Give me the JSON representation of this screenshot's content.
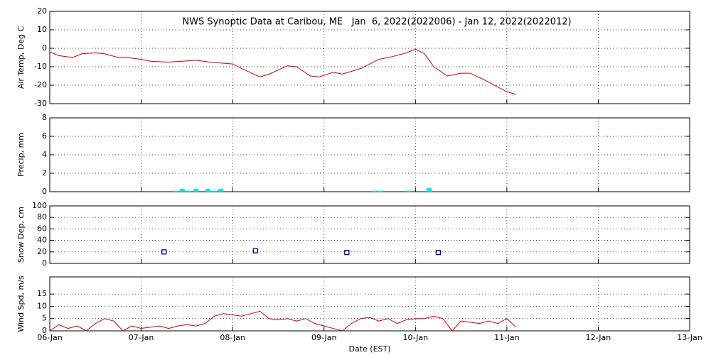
{
  "chart_data": [
    {
      "type": "line",
      "title": "NWS Synoptic Data at Caribou, ME   Jan  6, 2022(2022006) - Jan 12, 2022(2022012)",
      "ylabel": "Air Temp, Deg C",
      "xlim": [
        0,
        7
      ],
      "xticks": [
        0,
        1,
        2,
        3,
        4,
        5,
        6,
        7
      ],
      "ylim": [
        -30,
        20
      ],
      "yticks": [
        -30,
        -20,
        -10,
        0,
        10,
        20
      ],
      "grid": true,
      "series": [
        {
          "color": "#cc0000",
          "x": [
            0,
            0.1,
            0.25,
            0.35,
            0.5,
            0.6,
            0.75,
            0.85,
            1.0,
            1.1,
            1.3,
            1.45,
            1.6,
            1.75,
            2.0,
            2.1,
            2.3,
            2.4,
            2.6,
            2.7,
            2.85,
            2.95,
            3.1,
            3.2,
            3.4,
            3.6,
            3.75,
            3.9,
            4.0,
            4.1,
            4.2,
            4.35,
            4.5,
            4.6,
            4.75,
            4.9,
            5.0,
            5.1
          ],
          "values": [
            -2,
            -4,
            -5,
            -3,
            -2.5,
            -3,
            -5,
            -5,
            -6,
            -7,
            -7.5,
            -7,
            -6.5,
            -7.5,
            -8.5,
            -11,
            -15.5,
            -14,
            -9.5,
            -10,
            -15,
            -15.5,
            -13,
            -14,
            -11,
            -6,
            -4.5,
            -2.5,
            -0.5,
            -3,
            -10,
            -15,
            -13.5,
            -13.5,
            -17,
            -21,
            -23.5,
            -25
          ]
        }
      ]
    },
    {
      "type": "bar",
      "ylabel": "Precip, mm",
      "xlim": [
        0,
        7
      ],
      "xticks": [
        0,
        1,
        2,
        3,
        4,
        5,
        6,
        7
      ],
      "ylim": [
        0,
        8
      ],
      "yticks": [
        0,
        2,
        4,
        6,
        8
      ],
      "grid": true,
      "series": [
        {
          "color": "#00e5ee",
          "x": [
            1.38,
            1.45,
            1.52,
            1.6,
            1.73,
            1.8,
            1.87,
            3.55,
            3.62,
            3.93,
            4.15
          ],
          "values": [
            0.1,
            0.3,
            0.1,
            0.3,
            0.3,
            0.1,
            0.3,
            0.1,
            0.1,
            0.1,
            0.4
          ]
        }
      ]
    },
    {
      "type": "scatter",
      "ylabel": "Snow Dep, cm",
      "xlim": [
        0,
        7
      ],
      "xticks": [
        0,
        1,
        2,
        3,
        4,
        5,
        6,
        7
      ],
      "ylim": [
        0,
        100
      ],
      "yticks": [
        0,
        20,
        40,
        60,
        80,
        100
      ],
      "grid": true,
      "series": [
        {
          "color": "#000099",
          "x": [
            1.25,
            2.25,
            3.25,
            4.25
          ],
          "values": [
            20,
            22,
            19,
            19
          ]
        }
      ]
    },
    {
      "type": "line",
      "ylabel": "Wind Spd, m/s",
      "xlabel": "Date (EST)",
      "xlim": [
        0,
        7
      ],
      "xticks": [
        {
          "value": 0,
          "label": "06-Jan"
        },
        {
          "value": 1,
          "label": "07-Jan"
        },
        {
          "value": 2,
          "label": "08-Jan"
        },
        {
          "value": 3,
          "label": "09-Jan"
        },
        {
          "value": 4,
          "label": "10-Jan"
        },
        {
          "value": 5,
          "label": "11-Jan"
        },
        {
          "value": 6,
          "label": "12-Jan"
        },
        {
          "value": 7,
          "label": "13-Jan"
        }
      ],
      "ylim": [
        0,
        22
      ],
      "yticks": [
        0,
        5,
        10,
        15
      ],
      "grid": true,
      "series": [
        {
          "color": "#cc0000",
          "x": [
            0,
            0.1,
            0.2,
            0.3,
            0.4,
            0.5,
            0.6,
            0.7,
            0.8,
            0.9,
            1.0,
            1.1,
            1.2,
            1.3,
            1.4,
            1.5,
            1.6,
            1.7,
            1.8,
            1.9,
            2.0,
            2.1,
            2.2,
            2.3,
            2.4,
            2.5,
            2.6,
            2.7,
            2.8,
            2.9,
            3.0,
            3.1,
            3.2,
            3.3,
            3.4,
            3.5,
            3.6,
            3.7,
            3.8,
            3.9,
            4.0,
            4.1,
            4.2,
            4.3,
            4.4,
            4.5,
            4.6,
            4.7,
            4.8,
            4.9,
            5.0,
            5.1
          ],
          "values": [
            0,
            2.5,
            1,
            2,
            0,
            3,
            5,
            4,
            0,
            2,
            1,
            1.5,
            2,
            1,
            2,
            2.5,
            2,
            3,
            6,
            7,
            6.5,
            6,
            7,
            8,
            5,
            4.5,
            5,
            4,
            5,
            3,
            2,
            1,
            0,
            3,
            5,
            5.5,
            4,
            5,
            3,
            4.5,
            5,
            5,
            6,
            5,
            0,
            4,
            3.5,
            3,
            4,
            3,
            5,
            1.5
          ]
        }
      ]
    }
  ]
}
